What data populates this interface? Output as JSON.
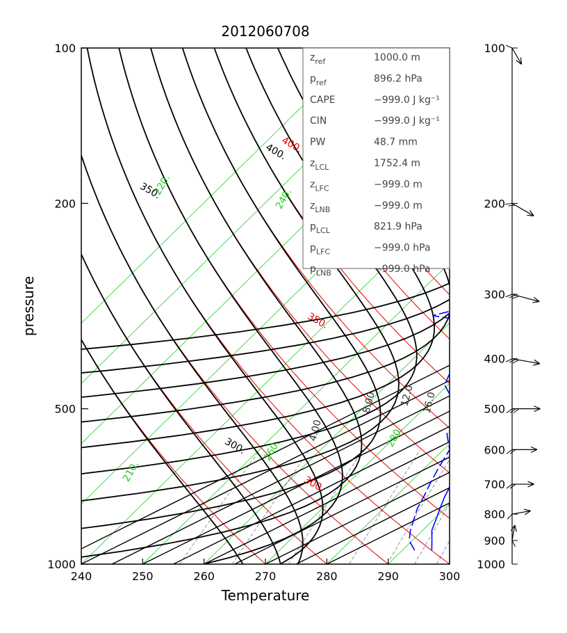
{
  "chart_data": {
    "type": "skew-t",
    "title": "2012060708",
    "xlabel": "Temperature",
    "ylabel": "pressure",
    "xlim": [
      240,
      300
    ],
    "ylim": [
      1000,
      100
    ],
    "yscale": "log",
    "x_ticks": [
      "240",
      "250",
      "260",
      "270",
      "280",
      "290",
      "300"
    ],
    "y_ticks": [
      "100",
      "200",
      "500",
      "1000"
    ],
    "info_box": [
      {
        "sym": "z",
        "sub": "ref",
        "value": "1000.0 m"
      },
      {
        "sym": "p",
        "sub": "ref",
        "value": "896.2 hPa"
      },
      {
        "sym": "CAPE",
        "sub": "",
        "value": "−999.0 J kg⁻¹"
      },
      {
        "sym": "CIN",
        "sub": "",
        "value": "−999.0 J kg⁻¹"
      },
      {
        "sym": "PW",
        "sub": "",
        "value": "48.7 mm"
      },
      {
        "sym": "z",
        "sub": "LCL",
        "value": "1752.4 m"
      },
      {
        "sym": "z",
        "sub": "LFC",
        "value": "−999.0 m"
      },
      {
        "sym": "z",
        "sub": "LNB",
        "value": "−999.0 m"
      },
      {
        "sym": "p",
        "sub": "LCL",
        "value": "821.9 hPa"
      },
      {
        "sym": "p",
        "sub": "LFC",
        "value": "−999.0 hPa"
      },
      {
        "sym": "p",
        "sub": "LNB",
        "value": "−999.0 hPa"
      }
    ],
    "isotherms": {
      "color": "#22cc22",
      "values": [
        200,
        210,
        220,
        230,
        240,
        250,
        260,
        270,
        280,
        290,
        300
      ],
      "labels": [
        "210.",
        "220.",
        "240.",
        "260.",
        "280."
      ]
    },
    "dry_adiabats": {
      "color": "#e00000",
      "values": [
        270,
        280,
        290,
        300,
        310,
        320,
        330,
        340,
        350,
        360,
        370,
        380,
        390,
        400
      ],
      "labels": [
        "300.",
        "350.",
        "400."
      ]
    },
    "moist_adiabats": {
      "color": "#000000",
      "values": [
        270,
        280,
        290,
        300,
        310,
        320,
        330,
        340,
        350,
        360,
        370,
        380,
        390,
        400
      ],
      "labels": [
        "300.",
        "350.",
        "400."
      ]
    },
    "mixing_ratio": {
      "color": "#000000",
      "values": [
        1,
        2,
        4,
        8,
        12,
        16,
        20,
        24
      ],
      "labels": [
        "4.00",
        "8.00",
        "12.0",
        "16.0"
      ]
    },
    "temperature_profile": {
      "color": "#0000ff",
      "points": [
        [
          940,
          294.8
        ],
        [
          900,
          293.2
        ],
        [
          860,
          291.5
        ],
        [
          820,
          290.4
        ],
        [
          780,
          289.2
        ],
        [
          740,
          288.0
        ],
        [
          700,
          287.0
        ],
        [
          650,
          285.8
        ],
        [
          600,
          284.7
        ],
        [
          560,
          283.9
        ],
        [
          520,
          282.6
        ],
        [
          480,
          280.9
        ],
        [
          440,
          278.9
        ],
        [
          400,
          276.0
        ],
        [
          370,
          273.8
        ],
        [
          345,
          271.6
        ],
        [
          320,
          268.9
        ],
        [
          295,
          265.8
        ],
        [
          270,
          262.6
        ],
        [
          250,
          259.6
        ],
        [
          230,
          256.0
        ],
        [
          210,
          252.5
        ],
        [
          190,
          249.5
        ],
        [
          175,
          247.0
        ],
        [
          160,
          244.5
        ],
        [
          145,
          242.5
        ],
        [
          130,
          240.8
        ],
        [
          115,
          239.8
        ],
        [
          100,
          238.0
        ]
      ]
    },
    "dewpoint_profile": {
      "color": "#0000ff",
      "points": [
        [
          940,
          292.0
        ],
        [
          900,
          289.5
        ],
        [
          860,
          288.0
        ],
        [
          820,
          286.8
        ],
        [
          780,
          285.5
        ],
        [
          740,
          284.6
        ],
        [
          700,
          283.5
        ],
        [
          650,
          282.2
        ],
        [
          600,
          281.0
        ],
        [
          560,
          278.0
        ],
        [
          520,
          276.8
        ],
        [
          490,
          273.5
        ],
        [
          470,
          272.0
        ],
        [
          450,
          269.5
        ],
        [
          430,
          268.5
        ],
        [
          410,
          268.8
        ],
        [
          385,
          267.0
        ],
        [
          365,
          265.5
        ],
        [
          345,
          263.0
        ],
        [
          335,
          260.0
        ],
        [
          330,
          256.0
        ],
        [
          315,
          261.0
        ],
        [
          300,
          262.5
        ],
        [
          280,
          258.0
        ],
        [
          260,
          251.0
        ],
        [
          245,
          246.0
        ],
        [
          232,
          243.0
        ],
        [
          225,
          239.0
        ]
      ]
    },
    "wind_barbs": {
      "pressure_labels": [
        "100",
        "200",
        "300",
        "400",
        "500",
        "600",
        "700",
        "800",
        "900",
        "1000"
      ],
      "levels": [
        {
          "p": 100,
          "dir": 330,
          "speed": 10
        },
        {
          "p": 200,
          "dir": 300,
          "speed": 20
        },
        {
          "p": 300,
          "dir": 285,
          "speed": 25
        },
        {
          "p": 400,
          "dir": 280,
          "speed": 25
        },
        {
          "p": 500,
          "dir": 270,
          "speed": 25
        },
        {
          "p": 600,
          "dir": 270,
          "speed": 20
        },
        {
          "p": 700,
          "dir": 270,
          "speed": 15
        },
        {
          "p": 800,
          "dir": 260,
          "speed": 10
        },
        {
          "p": 900,
          "dir": 190,
          "speed": 5
        }
      ]
    }
  }
}
